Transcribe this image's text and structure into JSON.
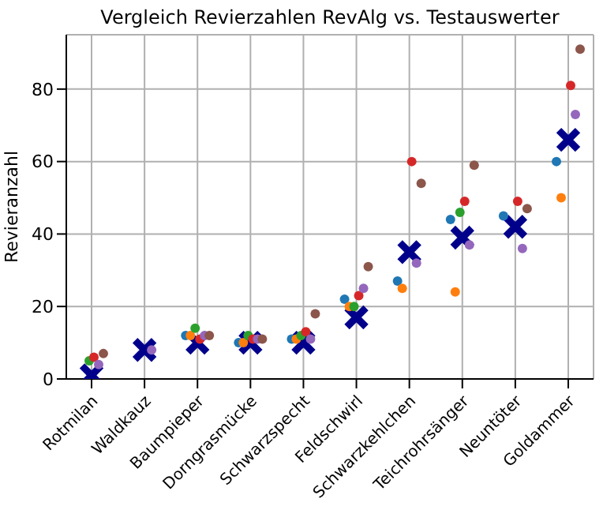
{
  "chart_data": {
    "type": "scatter",
    "title": "Vergleich Revierzahlen RevAlg vs. Testauswerter",
    "ylabel": "Revieranzahl",
    "categories": [
      "Rotmilan",
      "Waldkauz",
      "Baumpieper",
      "Dorngrasmücke",
      "Schwarzspecht",
      "Feldschwirl",
      "Schwarzkehlchen",
      "Teichrohrsänger",
      "Neuntöter",
      "Goldammer"
    ],
    "ylim": [
      0,
      95
    ],
    "yticks": [
      0,
      20,
      40,
      60,
      80
    ],
    "grid": true,
    "marker": "circle",
    "series": [
      {
        "color": "#1f77b4",
        "values": [
          null,
          null,
          12,
          10,
          11,
          22,
          27,
          44,
          45,
          60
        ]
      },
      {
        "color": "#ff7f0e",
        "values": [
          null,
          null,
          12,
          10,
          11,
          20,
          25,
          24,
          null,
          50
        ]
      },
      {
        "color": "#2ca02c",
        "values": [
          5,
          null,
          14,
          12,
          12,
          20,
          null,
          46,
          null,
          null
        ]
      },
      {
        "color": "#d62728",
        "values": [
          6,
          null,
          11,
          11,
          13,
          23,
          60,
          49,
          49,
          81
        ]
      },
      {
        "color": "#9467bd",
        "values": [
          4,
          8,
          12,
          11,
          11,
          25,
          32,
          37,
          36,
          73
        ]
      },
      {
        "color": "#8c564b",
        "values": [
          7,
          null,
          12,
          11,
          18,
          31,
          54,
          59,
          47,
          91
        ]
      },
      {
        "color": "#00008b",
        "marker": "cross",
        "values": [
          1,
          8,
          10,
          10,
          10,
          17,
          35,
          39,
          42,
          66
        ]
      }
    ]
  }
}
